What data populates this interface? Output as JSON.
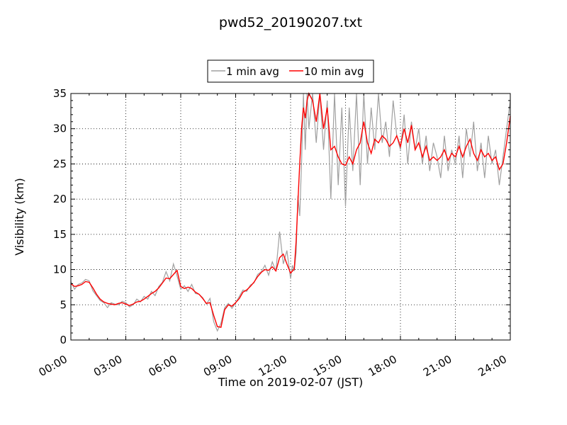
{
  "chart_data": {
    "type": "line",
    "title": "pwd52_20190207.txt",
    "xlabel": "Time on 2019-02-07 (JST)",
    "ylabel": "Visibility (km)",
    "x_unit": "hour of day (JST)",
    "xlim": [
      0,
      24
    ],
    "ylim": [
      0,
      35
    ],
    "xticks": [
      0,
      3,
      6,
      9,
      12,
      15,
      18,
      21,
      24
    ],
    "xtick_labels": [
      "00:00",
      "03:00",
      "06:00",
      "09:00",
      "12:00",
      "15:00",
      "18:00",
      "21:00",
      "24:00"
    ],
    "yticks": [
      0,
      5,
      10,
      15,
      20,
      25,
      30,
      35
    ],
    "ytick_labels": [
      "0",
      "5",
      "10",
      "15",
      "20",
      "25",
      "30",
      "35"
    ],
    "grid": true,
    "legend_placement": "above plot, centered",
    "legend": [
      "1 min avg",
      "10 min avg"
    ],
    "series": [
      {
        "name": "1 min avg",
        "color": "#a0a0a0",
        "x": [
          0.0,
          0.2,
          0.4,
          0.6,
          0.8,
          1.0,
          1.2,
          1.4,
          1.6,
          1.8,
          2.0,
          2.2,
          2.4,
          2.6,
          2.8,
          3.0,
          3.2,
          3.4,
          3.6,
          3.8,
          4.0,
          4.2,
          4.4,
          4.6,
          4.8,
          5.0,
          5.2,
          5.4,
          5.6,
          5.8,
          6.0,
          6.2,
          6.4,
          6.6,
          6.8,
          7.0,
          7.2,
          7.4,
          7.6,
          7.8,
          8.0,
          8.2,
          8.4,
          8.6,
          8.8,
          9.0,
          9.2,
          9.4,
          9.6,
          9.8,
          10.0,
          10.2,
          10.4,
          10.6,
          10.8,
          11.0,
          11.2,
          11.4,
          11.6,
          11.8,
          12.0,
          12.1,
          12.2,
          12.3,
          12.4,
          12.5,
          12.6,
          12.7,
          12.8,
          12.9,
          13.0,
          13.2,
          13.4,
          13.6,
          13.8,
          14.0,
          14.2,
          14.4,
          14.6,
          14.8,
          15.0,
          15.2,
          15.4,
          15.6,
          15.8,
          16.0,
          16.2,
          16.4,
          16.6,
          16.8,
          17.0,
          17.2,
          17.4,
          17.6,
          17.8,
          18.0,
          18.2,
          18.4,
          18.6,
          18.8,
          19.0,
          19.2,
          19.4,
          19.6,
          19.8,
          20.0,
          20.2,
          20.4,
          20.6,
          20.8,
          21.0,
          21.2,
          21.4,
          21.6,
          21.8,
          22.0,
          22.2,
          22.4,
          22.6,
          22.8,
          23.0,
          23.2,
          23.4,
          23.6,
          23.8,
          24.0
        ],
        "y": [
          8.3,
          7.2,
          7.9,
          8.1,
          8.6,
          8.4,
          7.0,
          6.3,
          5.6,
          5.3,
          4.6,
          5.3,
          5.1,
          5.0,
          5.5,
          5.3,
          4.7,
          5.0,
          5.8,
          5.4,
          6.2,
          5.8,
          6.9,
          6.3,
          7.6,
          8.2,
          9.7,
          8.4,
          10.8,
          9.1,
          7.2,
          7.7,
          6.9,
          7.9,
          6.6,
          6.5,
          6.0,
          5.1,
          5.9,
          2.6,
          1.3,
          2.4,
          4.6,
          5.2,
          4.5,
          5.3,
          6.2,
          7.1,
          6.9,
          7.8,
          8.1,
          9.3,
          9.7,
          10.6,
          9.2,
          11.1,
          9.8,
          15.4,
          10.8,
          12.7,
          8.7,
          10.6,
          9.8,
          12.4,
          20.5,
          17.6,
          25.2,
          35.0,
          27.0,
          35.0,
          30.0,
          35.0,
          28.0,
          35.0,
          27.0,
          34.0,
          20.0,
          35.0,
          22.0,
          33.0,
          19.0,
          33.0,
          24.0,
          35.0,
          22.0,
          35.0,
          25.0,
          33.0,
          27.0,
          35.0,
          28.0,
          31.0,
          26.0,
          34.0,
          29.0,
          27.0,
          32.0,
          25.0,
          31.0,
          27.0,
          30.0,
          25.0,
          29.0,
          24.0,
          28.0,
          26.0,
          23.0,
          29.0,
          24.0,
          27.0,
          25.0,
          29.0,
          23.0,
          30.0,
          26.0,
          31.0,
          24.0,
          28.0,
          23.0,
          29.0,
          25.0,
          27.0,
          22.0,
          26.0,
          30.0,
          34.0
        ]
      },
      {
        "name": "10 min avg",
        "color": "#ff0000",
        "x": [
          0.0,
          0.2,
          0.4,
          0.6,
          0.8,
          1.0,
          1.2,
          1.4,
          1.6,
          1.8,
          2.0,
          2.2,
          2.4,
          2.6,
          2.8,
          3.0,
          3.2,
          3.4,
          3.6,
          3.8,
          4.0,
          4.2,
          4.4,
          4.6,
          4.8,
          5.0,
          5.2,
          5.4,
          5.6,
          5.8,
          6.0,
          6.2,
          6.4,
          6.6,
          6.8,
          7.0,
          7.2,
          7.4,
          7.6,
          7.8,
          8.0,
          8.2,
          8.4,
          8.6,
          8.8,
          9.0,
          9.2,
          9.4,
          9.6,
          9.8,
          10.0,
          10.2,
          10.4,
          10.6,
          10.8,
          11.0,
          11.2,
          11.4,
          11.6,
          11.8,
          12.0,
          12.1,
          12.2,
          12.3,
          12.4,
          12.5,
          12.6,
          12.7,
          12.8,
          12.9,
          13.0,
          13.2,
          13.4,
          13.6,
          13.8,
          14.0,
          14.2,
          14.4,
          14.6,
          14.8,
          15.0,
          15.2,
          15.4,
          15.6,
          15.8,
          16.0,
          16.2,
          16.4,
          16.6,
          16.8,
          17.0,
          17.2,
          17.4,
          17.6,
          17.8,
          18.0,
          18.2,
          18.4,
          18.6,
          18.8,
          19.0,
          19.2,
          19.4,
          19.6,
          19.8,
          20.0,
          20.2,
          20.4,
          20.6,
          20.8,
          21.0,
          21.2,
          21.4,
          21.6,
          21.8,
          22.0,
          22.2,
          22.4,
          22.6,
          22.8,
          23.0,
          23.2,
          23.4,
          23.6,
          23.8,
          24.0
        ],
        "y": [
          8.0,
          7.6,
          7.7,
          7.9,
          8.3,
          8.2,
          7.4,
          6.5,
          5.8,
          5.4,
          5.2,
          5.1,
          5.0,
          5.2,
          5.3,
          5.1,
          4.9,
          5.1,
          5.4,
          5.5,
          5.8,
          6.2,
          6.6,
          6.9,
          7.4,
          8.1,
          8.8,
          8.7,
          9.3,
          9.9,
          7.6,
          7.3,
          7.5,
          7.3,
          6.8,
          6.5,
          5.9,
          5.2,
          5.3,
          3.5,
          1.9,
          1.8,
          4.3,
          5.0,
          4.8,
          5.3,
          5.9,
          6.8,
          7.1,
          7.6,
          8.2,
          9.0,
          9.6,
          10.0,
          9.9,
          10.4,
          9.8,
          11.7,
          12.2,
          10.8,
          9.5,
          9.8,
          10.1,
          14.0,
          19.5,
          25.0,
          30.0,
          33.0,
          31.5,
          34.0,
          35.0,
          34.0,
          31.0,
          35.0,
          30.0,
          33.0,
          27.0,
          27.5,
          26.0,
          25.0,
          24.8,
          26.0,
          25.0,
          27.0,
          28.0,
          31.0,
          28.0,
          26.5,
          28.5,
          28.0,
          29.0,
          28.5,
          27.5,
          28.0,
          29.0,
          27.5,
          30.0,
          28.0,
          30.5,
          27.0,
          28.0,
          26.0,
          27.5,
          25.5,
          26.0,
          25.5,
          26.0,
          27.0,
          25.5,
          26.5,
          26.0,
          27.5,
          26.0,
          27.5,
          28.5,
          26.5,
          25.5,
          27.0,
          26.0,
          26.5,
          25.5,
          26.0,
          24.2,
          25.0,
          28.0,
          31.8
        ]
      }
    ]
  }
}
